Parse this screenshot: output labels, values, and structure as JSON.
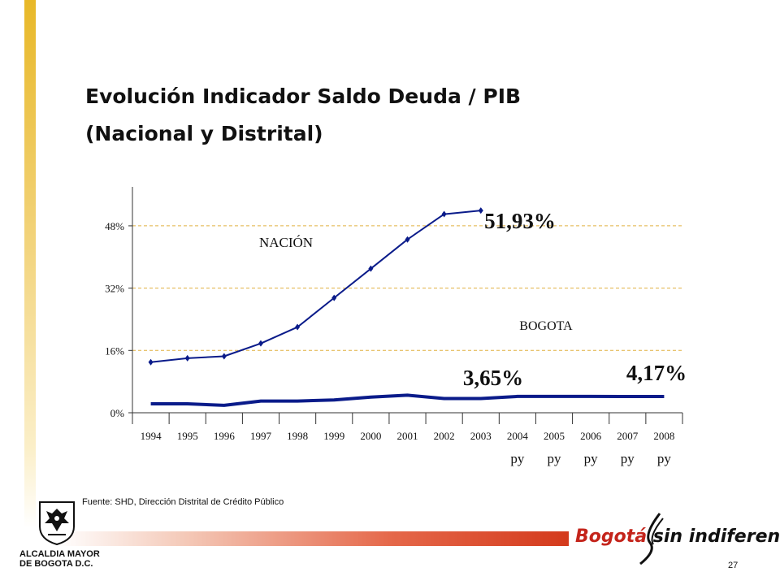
{
  "slide": {
    "title_line1": "Evolución Indicador Saldo Deuda / PIB",
    "title_line2": "(Nacional y Distrital)",
    "source": "Fuente: SHD, Dirección Distrital de Crédito Público",
    "page_number": "27",
    "logo_left": {
      "line1": "ALCALDIA MAYOR",
      "line2": "DE BOGOTA D.C."
    },
    "logo_right": {
      "part1": "Bogotá",
      "part2": "sin indiferencia"
    },
    "colors": {
      "accent_bar": "#e8b828",
      "series": "#0a1b8a",
      "grid": "#e0b040",
      "brand_red": "#c4241b"
    }
  },
  "chart_data": {
    "type": "line",
    "categories": [
      "1994",
      "1995",
      "1996",
      "1997",
      "1998",
      "1999",
      "2000",
      "2001",
      "2002",
      "2003",
      "2004",
      "2005",
      "2006",
      "2007",
      "2008"
    ],
    "category_sublabels": [
      "",
      "",
      "",
      "",
      "",
      "",
      "",
      "",
      "",
      "",
      "py",
      "py",
      "py",
      "py",
      "py"
    ],
    "yticks": [
      0,
      16,
      32,
      48
    ],
    "ytick_labels": [
      "0%",
      "16%",
      "32%",
      "48%"
    ],
    "ylim": [
      0,
      60
    ],
    "grid": "horizontal dashed",
    "series": [
      {
        "name": "NACIÓN",
        "markers": true,
        "values": [
          13,
          14,
          14.5,
          17.8,
          22,
          29.5,
          37,
          44.5,
          51,
          51.93,
          null,
          null,
          null,
          null,
          null
        ]
      },
      {
        "name": "BOGOTA",
        "markers": false,
        "values": [
          2.3,
          2.3,
          1.9,
          3.0,
          3.0,
          3.3,
          4.0,
          4.5,
          3.65,
          3.65,
          4.2,
          4.2,
          4.2,
          4.17,
          4.17
        ]
      }
    ],
    "annotations": [
      "51,93%",
      "3,65%",
      "4,17%"
    ]
  }
}
